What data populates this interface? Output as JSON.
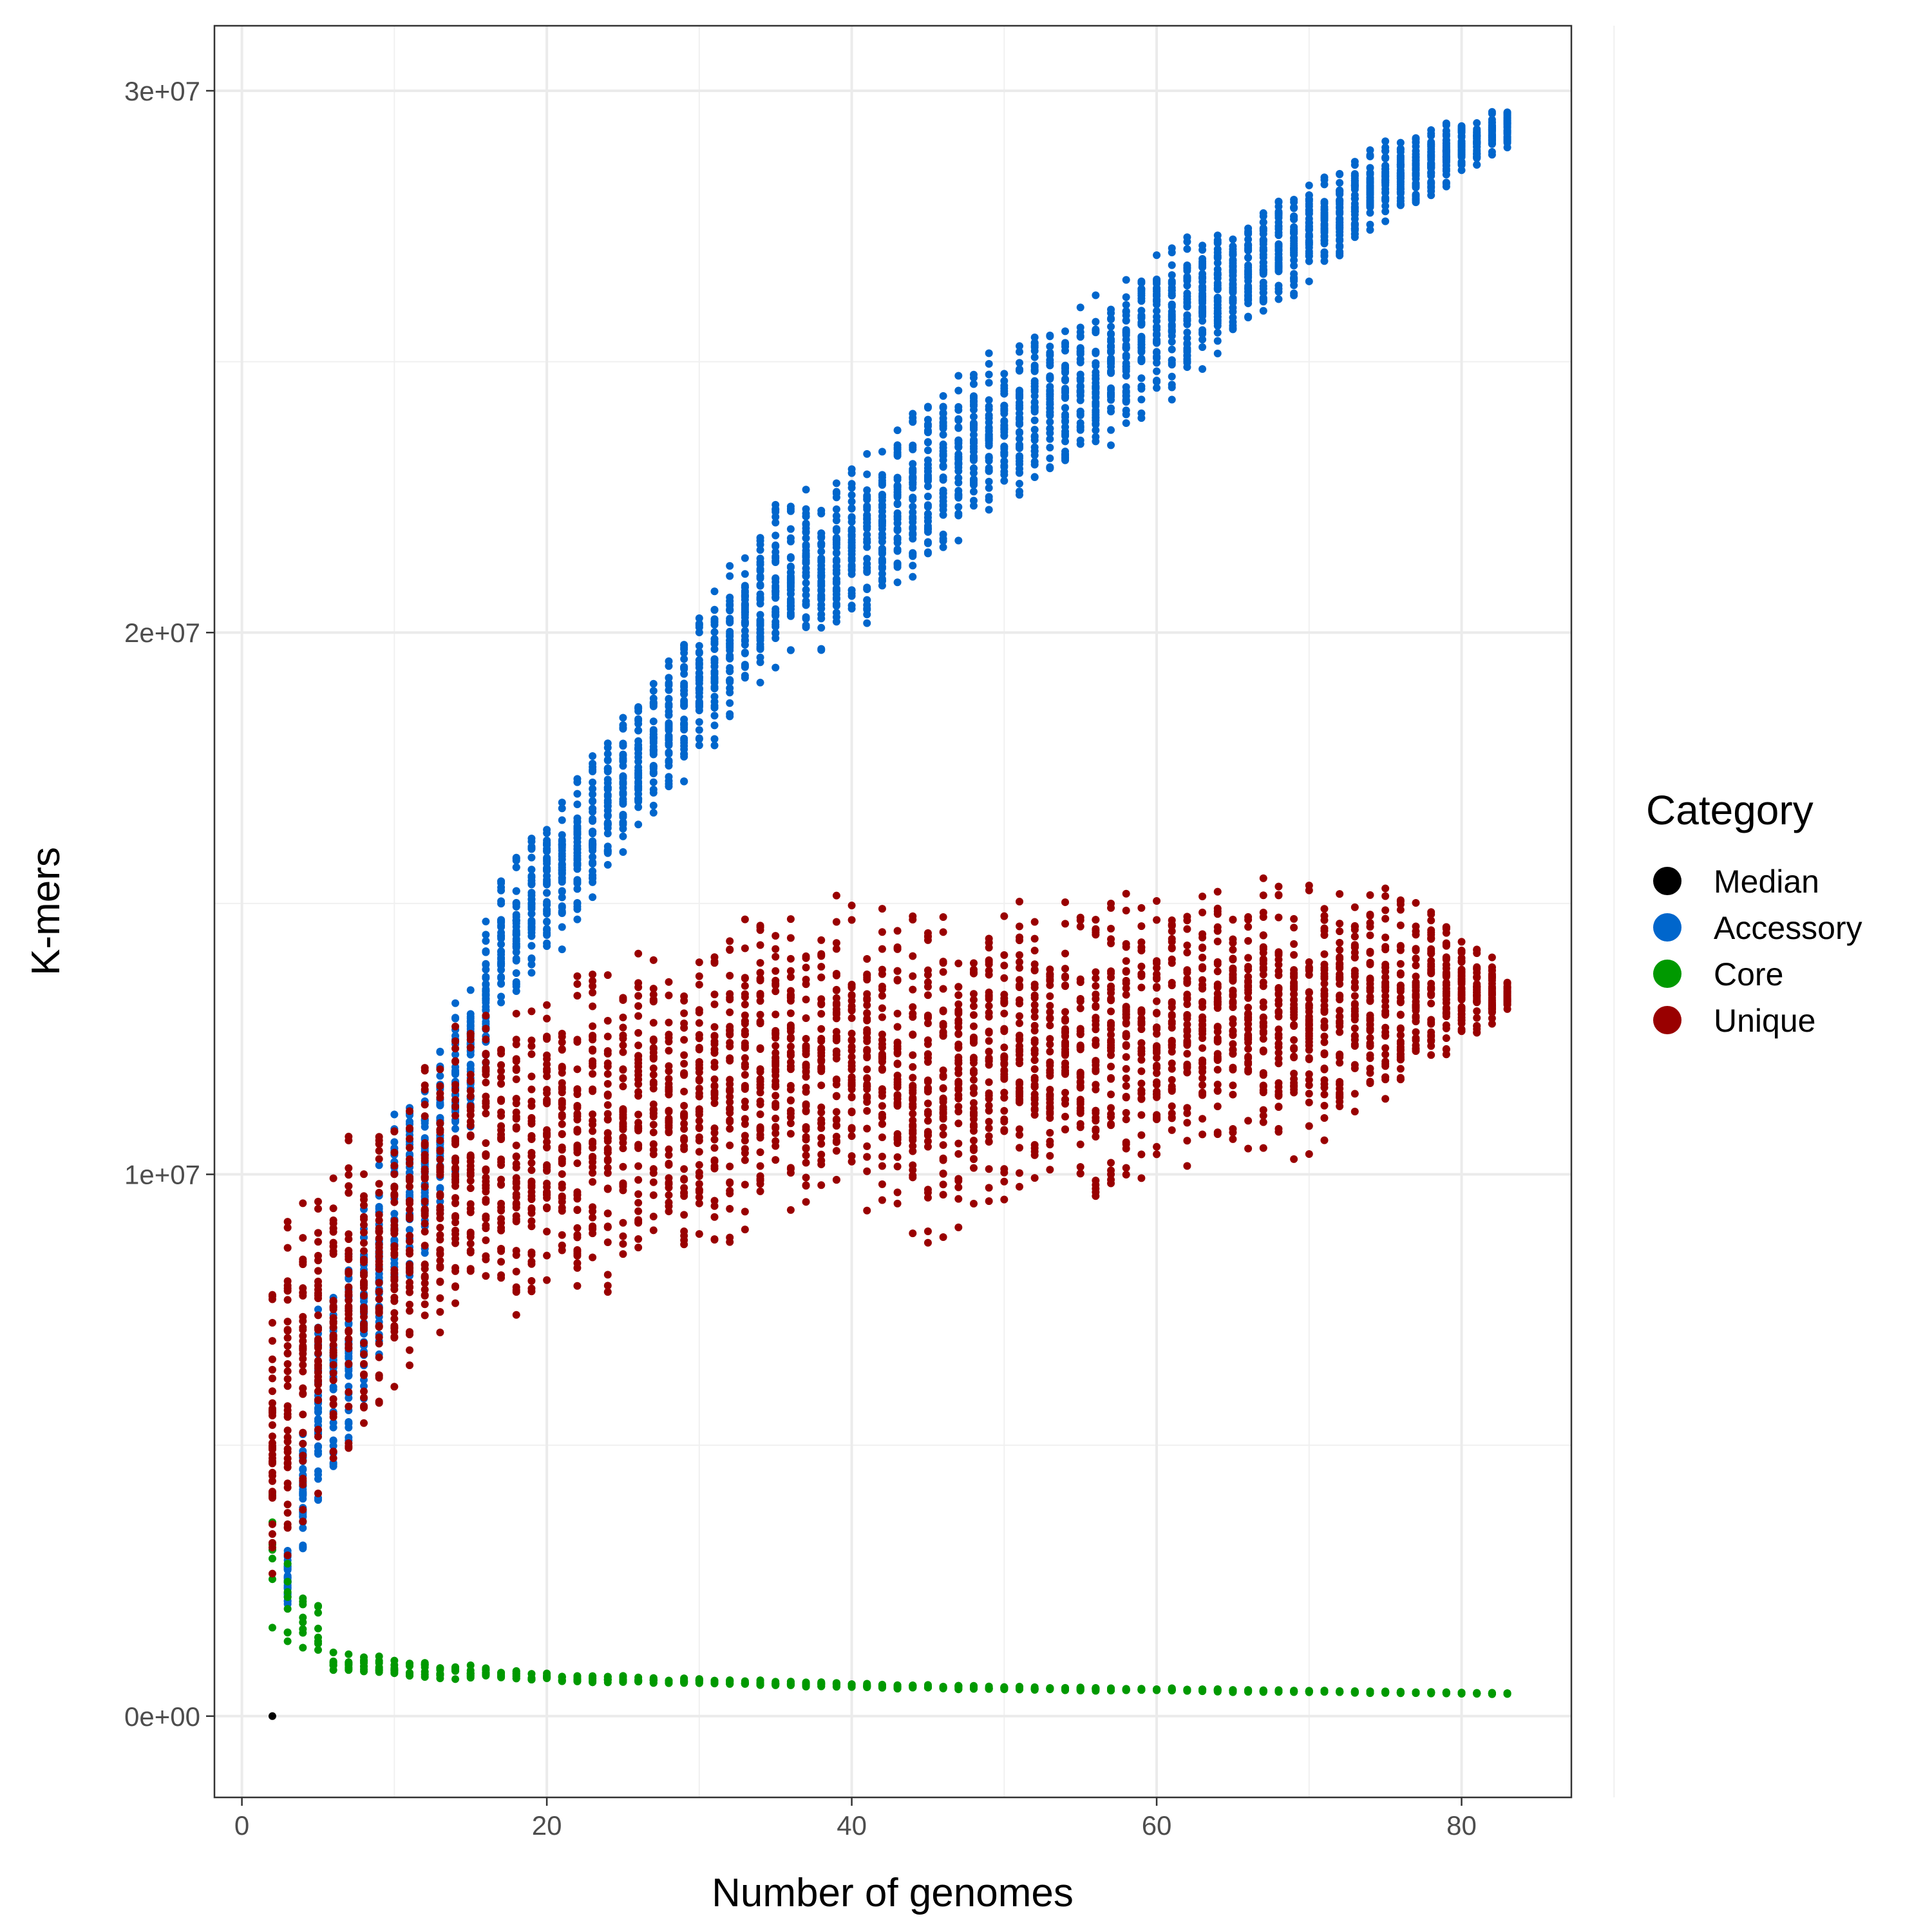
{
  "chart_data": {
    "type": "scatter",
    "xlabel": "Number of genomes",
    "ylabel": "K-mers",
    "xlim": [
      -1.8,
      87.2
    ],
    "ylim": [
      -1500000,
      31200000
    ],
    "x_ticks": [
      0,
      20,
      40,
      60,
      80
    ],
    "x_tick_labels": [
      "0",
      "20",
      "40",
      "60",
      "80"
    ],
    "y_ticks": [
      0,
      10000000,
      20000000,
      30000000
    ],
    "y_tick_labels": [
      "0e+00",
      "1e+07",
      "2e+07",
      "3e+07"
    ],
    "grid": true,
    "x_range": [
      2,
      83
    ],
    "legend": {
      "title": "Category",
      "placement": "right",
      "entries": [
        {
          "name": "Median",
          "color": "#000000"
        },
        {
          "name": "Accessory",
          "color": "#0066CC"
        },
        {
          "name": "Core",
          "color": "#009900"
        },
        {
          "name": "Unique",
          "color": "#990000"
        }
      ]
    },
    "series": [
      {
        "name": "Accessory",
        "color": "#0066CC",
        "x": [
          3,
          5,
          8,
          10,
          15,
          17,
          20,
          25,
          30,
          35,
          40,
          45,
          50,
          55,
          60,
          65,
          70,
          75,
          80,
          83
        ],
        "y_low": [
          1800000,
          3500000,
          5500000,
          7000000,
          10500000,
          13000000,
          13700000,
          15800000,
          17500000,
          19000000,
          19800000,
          21000000,
          22300000,
          23000000,
          24000000,
          25300000,
          26400000,
          27500000,
          28300000,
          28900000
        ],
        "y_high": [
          3200000,
          7800000,
          9600000,
          11200000,
          13800000,
          15800000,
          16800000,
          18600000,
          20500000,
          22500000,
          23300000,
          24500000,
          25500000,
          26100000,
          27200000,
          27700000,
          28500000,
          29100000,
          29600000,
          29700000
        ]
      },
      {
        "name": "Core",
        "color": "#009900",
        "x": [
          2,
          3,
          4,
          5,
          6,
          8,
          10,
          15,
          20,
          30,
          40,
          50,
          60,
          70,
          83
        ],
        "y_low": [
          1300000,
          1000000,
          920000,
          850000,
          800000,
          760000,
          700000,
          650000,
          620000,
          570000,
          520000,
          470000,
          450000,
          430000,
          400000
        ],
        "y_high": [
          5500000,
          3300000,
          2700000,
          2600000,
          1400000,
          1200000,
          1100000,
          950000,
          820000,
          700000,
          620000,
          560000,
          520000,
          480000,
          430000
        ]
      },
      {
        "name": "Unique",
        "color": "#990000",
        "x": [
          2,
          3,
          5,
          8,
          10,
          15,
          20,
          25,
          30,
          35,
          40,
          45,
          50,
          55,
          60,
          65,
          70,
          75,
          80,
          83
        ],
        "y_low": [
          2500000,
          2200000,
          3500000,
          5000000,
          5800000,
          7500000,
          7200000,
          7500000,
          8200000,
          9000000,
          9200000,
          8500000,
          9200000,
          9300000,
          9800000,
          10300000,
          10200000,
          11200000,
          12200000,
          13000000
        ],
        "y_high": [
          8600000,
          9500000,
          10300000,
          11000000,
          11700000,
          13200000,
          13700000,
          14500000,
          14900000,
          15100000,
          15200000,
          15200000,
          15200000,
          15300000,
          15300000,
          15600000,
          15600000,
          15400000,
          14700000,
          13700000
        ]
      },
      {
        "name": "Median",
        "color": "#000000",
        "x": [
          2
        ],
        "y": [
          0
        ]
      }
    ]
  }
}
